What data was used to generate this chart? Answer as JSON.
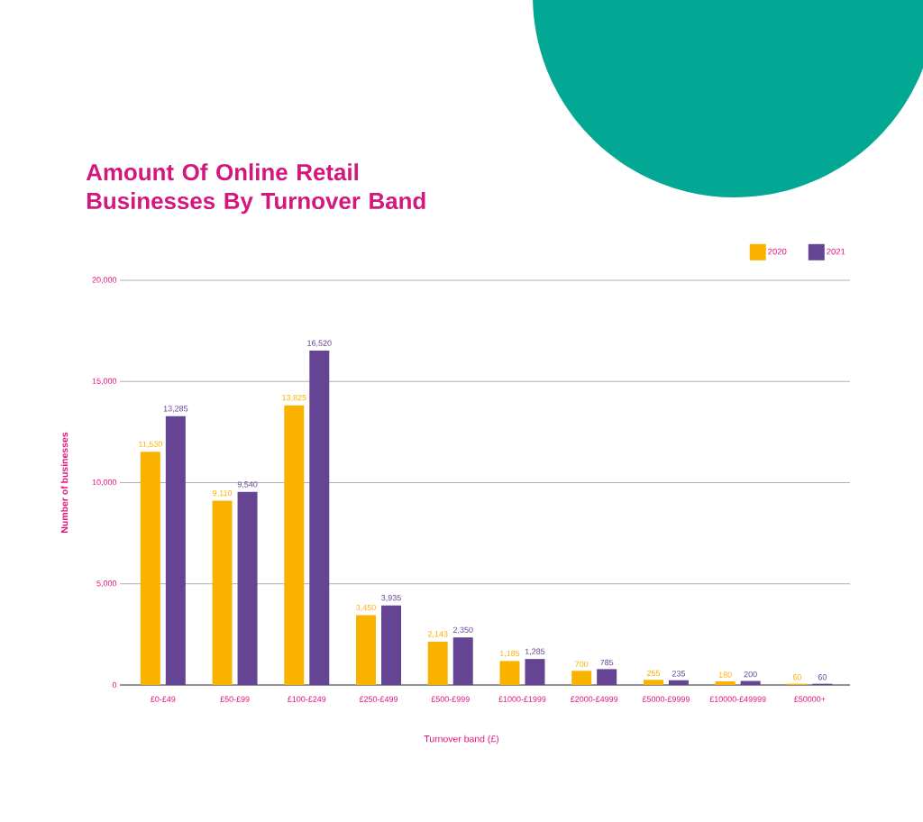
{
  "chart_data": {
    "type": "bar",
    "title": "Amount Of Online Retail Businesses By Turnover Band",
    "xlabel": "Turnover band (£)",
    "ylabel": "Number of businesses",
    "categories": [
      "£0-£49",
      "£50-£99",
      "£100-£249",
      "£250-£499",
      "£500-£999",
      "£1000-£1999",
      "£2000-£4999",
      "£5000-£9999",
      "£10000-£49999",
      "£50000+"
    ],
    "series": [
      {
        "name": "2020",
        "color": "#f9b200",
        "values": [
          11530,
          9110,
          13825,
          3450,
          2143,
          1185,
          700,
          255,
          180,
          60
        ],
        "value_labels": [
          "11,530",
          "9,110",
          "13,825",
          "3,450",
          "2,143",
          "1,185",
          "700",
          "255",
          "180",
          "60"
        ]
      },
      {
        "name": "2021",
        "color": "#664494",
        "values": [
          13285,
          9540,
          16520,
          3935,
          2350,
          1285,
          785,
          235,
          200,
          60
        ],
        "value_labels": [
          "13,285",
          "9,540",
          "16,520",
          "3,935",
          "2,350",
          "1,285",
          "785",
          "235",
          "200",
          "60"
        ]
      }
    ],
    "ylim": [
      0,
      20000
    ],
    "yticks": [
      0,
      {
        "value": 5000,
        "label": "5,000"
      },
      {
        "value": 10000,
        "label": "10,000"
      },
      {
        "value": 15000,
        "label": "15,000"
      },
      {
        "value": 20000,
        "label": "20,000"
      }
    ],
    "grid": "y",
    "legend": "top right"
  }
}
